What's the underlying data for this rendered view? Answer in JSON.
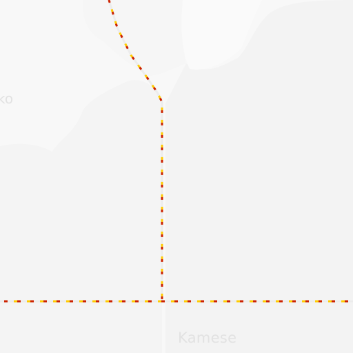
{
  "map": {
    "labels": {
      "partial_town": "ko",
      "town": "Kamese"
    },
    "colors": {
      "background": "#f8f8f8",
      "land_shade": "#f3f3f3",
      "land_shade_light": "#f5f5f5",
      "road_casing": "#ececec",
      "boundary_red": "#cc2200",
      "boundary_yellow": "#ffcc00",
      "label": "#e2e2e2"
    },
    "icons": {
      "boundary": "dashed-red-yellow-line"
    }
  }
}
